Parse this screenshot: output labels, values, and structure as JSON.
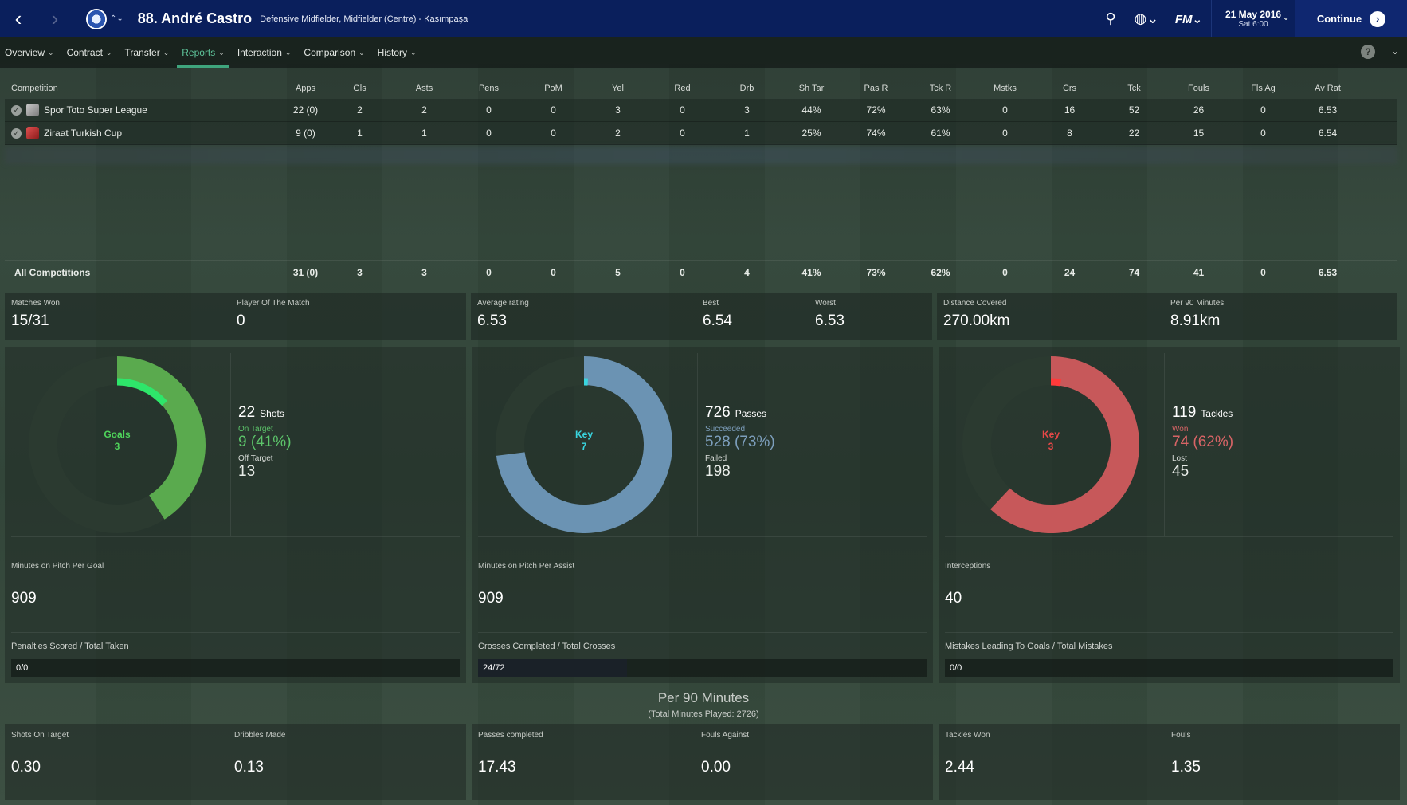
{
  "header": {
    "back_icon": "‹",
    "forward_icon": "›",
    "switch_icon": "⌃⌄",
    "player_title": "88. André Castro",
    "player_subtitle": "Defensive Midfielder, Midfielder (Centre) - Kasımpaşa",
    "search_icon": "⚲",
    "globe_icon": "◍⌄",
    "fm_label": "FM⌄",
    "date": "21 May 2016",
    "day_time": "Sat 6:00",
    "date_chevron": "⌄",
    "continue_label": "Continue",
    "continue_icon": "›"
  },
  "tabs": [
    {
      "label": "Overview",
      "active": false
    },
    {
      "label": "Contract",
      "active": false
    },
    {
      "label": "Transfer",
      "active": false
    },
    {
      "label": "Reports",
      "active": true
    },
    {
      "label": "Interaction",
      "active": false
    },
    {
      "label": "Comparison",
      "active": false
    },
    {
      "label": "History",
      "active": false
    }
  ],
  "tab_chevron": "⌄",
  "help_label": "?",
  "collapse_icon": "⌄",
  "stats_table": {
    "columns": [
      "Competition",
      "Apps",
      "Gls",
      "Asts",
      "Pens",
      "PoM",
      "Yel",
      "Red",
      "Drb",
      "Sh Tar",
      "Pas R",
      "Tck R",
      "Mstks",
      "Crs",
      "Tck",
      "Fouls",
      "Fls Ag",
      "Av Rat"
    ],
    "rows": [
      {
        "competition": "Spor Toto Super League",
        "values": [
          "22 (0)",
          "2",
          "2",
          "0",
          "0",
          "3",
          "0",
          "3",
          "44%",
          "72%",
          "63%",
          "0",
          "16",
          "52",
          "26",
          "0",
          "6.53"
        ]
      },
      {
        "competition": "Ziraat Turkish Cup",
        "values": [
          "9 (0)",
          "1",
          "1",
          "0",
          "0",
          "2",
          "0",
          "1",
          "25%",
          "74%",
          "61%",
          "0",
          "8",
          "22",
          "15",
          "0",
          "6.54"
        ]
      }
    ],
    "total": {
      "competition": "All Competitions",
      "values": [
        "31 (0)",
        "3",
        "3",
        "0",
        "0",
        "5",
        "0",
        "4",
        "41%",
        "73%",
        "62%",
        "0",
        "24",
        "74",
        "41",
        "0",
        "6.53"
      ]
    }
  },
  "summary": {
    "matches_won_label": "Matches Won",
    "matches_won": "15/31",
    "pom_label": "Player Of The Match",
    "pom": "0",
    "avg_rating_label": "Average rating",
    "avg_rating": "6.53",
    "best_label": "Best",
    "best": "6.54",
    "worst_label": "Worst",
    "worst": "6.53",
    "distance_label": "Distance Covered",
    "distance": "270.00km",
    "per90_label": "Per 90 Minutes",
    "per90": "8.91km"
  },
  "panels": {
    "shooting": {
      "donut_label": "Goals",
      "donut_value": "3",
      "ring_fraction": 0.41,
      "inner_fraction": 0.136,
      "color": "#5aaa4e",
      "inner_color": "#2ee66a",
      "track_color": "#2b3a30",
      "total": "22",
      "total_label": "Shots",
      "sub_label": "On Target",
      "sub_value": "9 (41%)",
      "sub_color": "#5cc46a",
      "other_label": "Off Target",
      "other_value": "13",
      "mid_label": "Minutes on Pitch Per Goal",
      "mid_value": "909",
      "ratio_label": "Penalties Scored / Total Taken",
      "ratio_text": "0/0",
      "ratio_fraction": 0
    },
    "passing": {
      "donut_label": "Key",
      "donut_value": "7",
      "ring_fraction": 0.73,
      "inner_fraction": 0.0096,
      "color": "#6b93b3",
      "inner_color": "#39d6e0",
      "track_color": "#2b3a30",
      "total": "726",
      "total_label": "Passes",
      "sub_label": "Succeeded",
      "sub_value": "528 (73%)",
      "sub_color": "#7d9fbd",
      "other_label": "Failed",
      "other_value": "198",
      "mid_label": "Minutes on Pitch Per Assist",
      "mid_value": "909",
      "ratio_label": "Crosses Completed / Total Crosses",
      "ratio_text": "24/72",
      "ratio_fraction": 0.333
    },
    "defending": {
      "donut_label": "Key",
      "donut_value": "3",
      "ring_fraction": 0.62,
      "inner_fraction": 0.025,
      "color": "#c7585a",
      "inner_color": "#ff3a3a",
      "track_color": "#2b3a30",
      "total": "119",
      "total_label": "Tackles",
      "sub_label": "Won",
      "sub_value": "74 (62%)",
      "sub_color": "#d86466",
      "other_label": "Lost",
      "other_value": "45",
      "mid_label": "Interceptions",
      "mid_value": "40",
      "ratio_label": "Mistakes Leading To Goals / Total Mistakes",
      "ratio_text": "0/0",
      "ratio_fraction": 0
    }
  },
  "per90": {
    "title": "Per 90 Minutes",
    "subtitle": "(Total Minutes Played: 2726)",
    "items": [
      {
        "label": "Shots On Target",
        "value": "0.30"
      },
      {
        "label": "Dribbles Made",
        "value": "0.13"
      },
      {
        "label": "Passes completed",
        "value": "17.43"
      },
      {
        "label": "Fouls Against",
        "value": "0.00"
      },
      {
        "label": "Tackles Won",
        "value": "2.44"
      },
      {
        "label": "Fouls",
        "value": "1.35"
      }
    ]
  }
}
